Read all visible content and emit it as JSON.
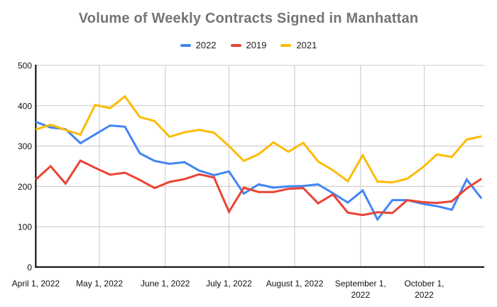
{
  "chart_data": {
    "type": "line",
    "title": "Volume of Weekly Contracts Signed in Manhattan",
    "xlabel": "",
    "ylabel": "",
    "ylim": [
      0,
      500
    ],
    "yticks": [
      0,
      100,
      200,
      300,
      400,
      500
    ],
    "grid": "horizontal gray lines at each ytick; vertical gray lines at month starts",
    "legend_position": "top-center",
    "categories": [
      "Apr 1",
      "Apr 8",
      "Apr 15",
      "Apr 22",
      "Apr 29",
      "May 6",
      "May 13",
      "May 20",
      "May 27",
      "Jun 3",
      "Jun 10",
      "Jun 17",
      "Jun 24",
      "Jul 1",
      "Jul 8",
      "Jul 15",
      "Jul 22",
      "Jul 29",
      "Aug 5",
      "Aug 12",
      "Aug 19",
      "Aug 26",
      "Sep 2",
      "Sep 9",
      "Sep 16",
      "Sep 23",
      "Sep 30",
      "Oct 7",
      "Oct 14",
      "Oct 21",
      "Oct 28"
    ],
    "x_axis_ticks": [
      {
        "day": 0,
        "lines": [
          "April 1, 2022"
        ]
      },
      {
        "day": 30,
        "lines": [
          "May 1, 2022"
        ]
      },
      {
        "day": 61,
        "lines": [
          "June 1, 2022"
        ]
      },
      {
        "day": 91,
        "lines": [
          "July 1, 2022"
        ]
      },
      {
        "day": 122,
        "lines": [
          "August 1, 2022"
        ]
      },
      {
        "day": 153,
        "lines": [
          "September 1,",
          "2022"
        ]
      },
      {
        "day": 183,
        "lines": [
          "October 1,",
          "2022"
        ]
      }
    ],
    "series": [
      {
        "name": "2022",
        "color": "#4285F4",
        "values": [
          360,
          346,
          342,
          307,
          329,
          351,
          348,
          282,
          263,
          256,
          260,
          239,
          228,
          237,
          182,
          205,
          197,
          200,
          201,
          205,
          183,
          160,
          190,
          118,
          166,
          166,
          157,
          151,
          142,
          217,
          170
        ]
      },
      {
        "name": "2019",
        "color": "#EA4335",
        "values": [
          217,
          250,
          207,
          264,
          246,
          229,
          234,
          216,
          196,
          211,
          218,
          230,
          222,
          137,
          197,
          186,
          186,
          194,
          196,
          158,
          180,
          135,
          129,
          136,
          134,
          166,
          161,
          159,
          163,
          195,
          219
        ]
      },
      {
        "name": "2021",
        "color": "#FBBC04",
        "values": [
          341,
          353,
          340,
          328,
          402,
          394,
          423,
          372,
          362,
          323,
          334,
          340,
          333,
          300,
          263,
          280,
          309,
          286,
          308,
          262,
          240,
          213,
          277,
          212,
          210,
          219,
          246,
          279,
          273,
          316,
          324
        ]
      }
    ]
  },
  "colors": {
    "background": "#ffffff",
    "title_text": "#757575",
    "legend_text": "#1f1f1f",
    "axis_line": "#000000",
    "gridline": "#cccccc",
    "tick_text": "#111111",
    "series_2022": "#4285F4",
    "series_2019": "#EA4335",
    "series_2021": "#FBBC04"
  }
}
